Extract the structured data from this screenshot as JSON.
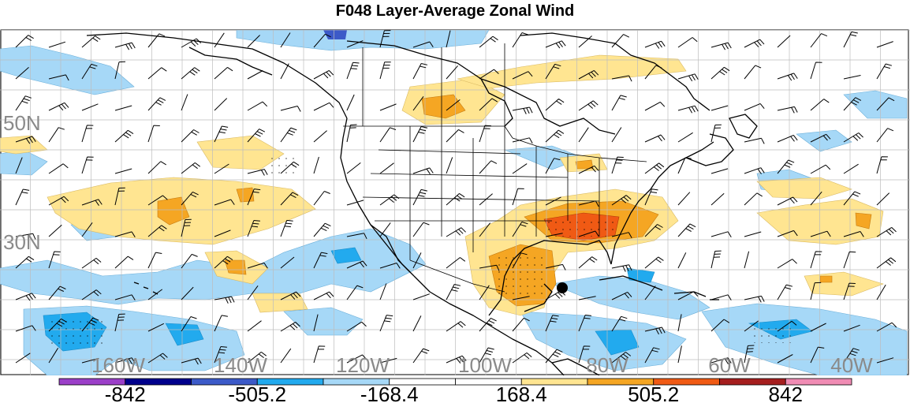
{
  "title": "F048 Layer-Average Zonal Wind",
  "map": {
    "lat_labels": [
      "50N",
      "30N"
    ],
    "lon_labels": [
      "160W",
      "140W",
      "120W",
      "100W",
      "80W",
      "60W",
      "40W"
    ],
    "colors": {
      "water_bg": "#ffffff",
      "grid": "#bdbdbd",
      "coast": "#000000",
      "label_gray": "#8a8a8a"
    }
  },
  "colorbar": {
    "colors": [
      "#9b3fc8",
      "#00008c",
      "#3c5ac8",
      "#22aaee",
      "#a6d8f7",
      "#ffffff",
      "#ffffff",
      "#ffe591",
      "#f5a623",
      "#f05a14",
      "#a51e1e",
      "#f08cb4"
    ],
    "labels": [
      "-842",
      "-505.2",
      "-168.4",
      "168.4",
      "505.2",
      "842"
    ]
  },
  "marker": {
    "label": "",
    "color": "#000000"
  }
}
